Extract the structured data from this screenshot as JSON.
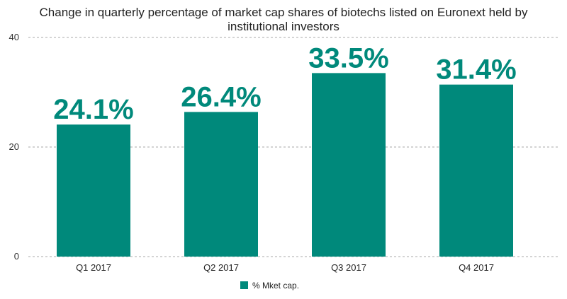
{
  "chart_data": {
    "type": "bar",
    "title_lines": [
      "Change in quarterly percentage of market cap shares of biotechs listed on Euronext held by",
      "institutional investors"
    ],
    "categories": [
      "Q1 2017",
      "Q2 2017",
      "Q3 2017",
      "Q4 2017"
    ],
    "series": [
      {
        "name": "% Mket cap.",
        "values": [
          24.1,
          26.4,
          33.5,
          31.4
        ],
        "data_labels": [
          "24.1%",
          "26.4%",
          "33.5%",
          "31.4%"
        ]
      }
    ],
    "y_ticks": [
      0,
      20,
      40
    ],
    "ylim": [
      0,
      40
    ],
    "grid": true,
    "legend_position": "bottom-center",
    "colors": {
      "bar": "#00897b",
      "label": "#00897b",
      "grid": "#aaaaaa"
    }
  }
}
